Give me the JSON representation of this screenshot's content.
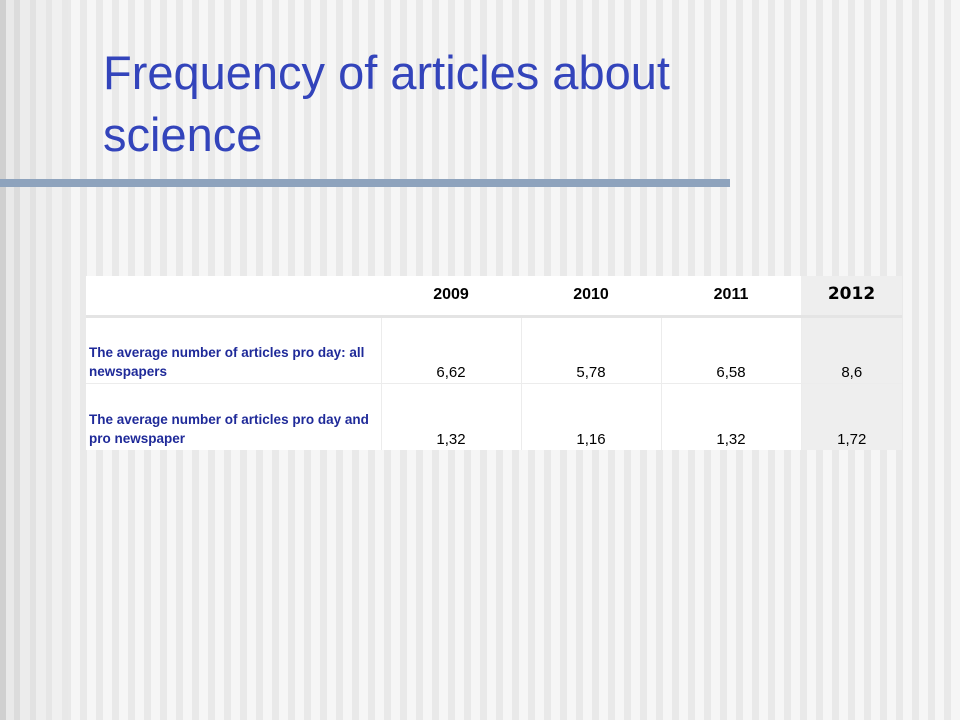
{
  "slide": {
    "title": "Frequency of articles about science"
  },
  "table": {
    "corner": "",
    "columns": [
      "2009",
      "2010",
      "2011",
      "2012"
    ],
    "rows": [
      {
        "label": "The average number of articles pro day: all newspapers",
        "values": [
          "6,62",
          "5,78",
          "6,58",
          "8,6"
        ]
      },
      {
        "label": "The average number of articles pro day and pro newspaper",
        "values": [
          "1,32",
          "1,16",
          "1,32",
          "1,72"
        ]
      }
    ]
  },
  "colors": {
    "title": "#3344bb",
    "title_rule": "#8ea3bd",
    "row_label": "#1f2a99",
    "accent_column": "#eeeeee"
  }
}
